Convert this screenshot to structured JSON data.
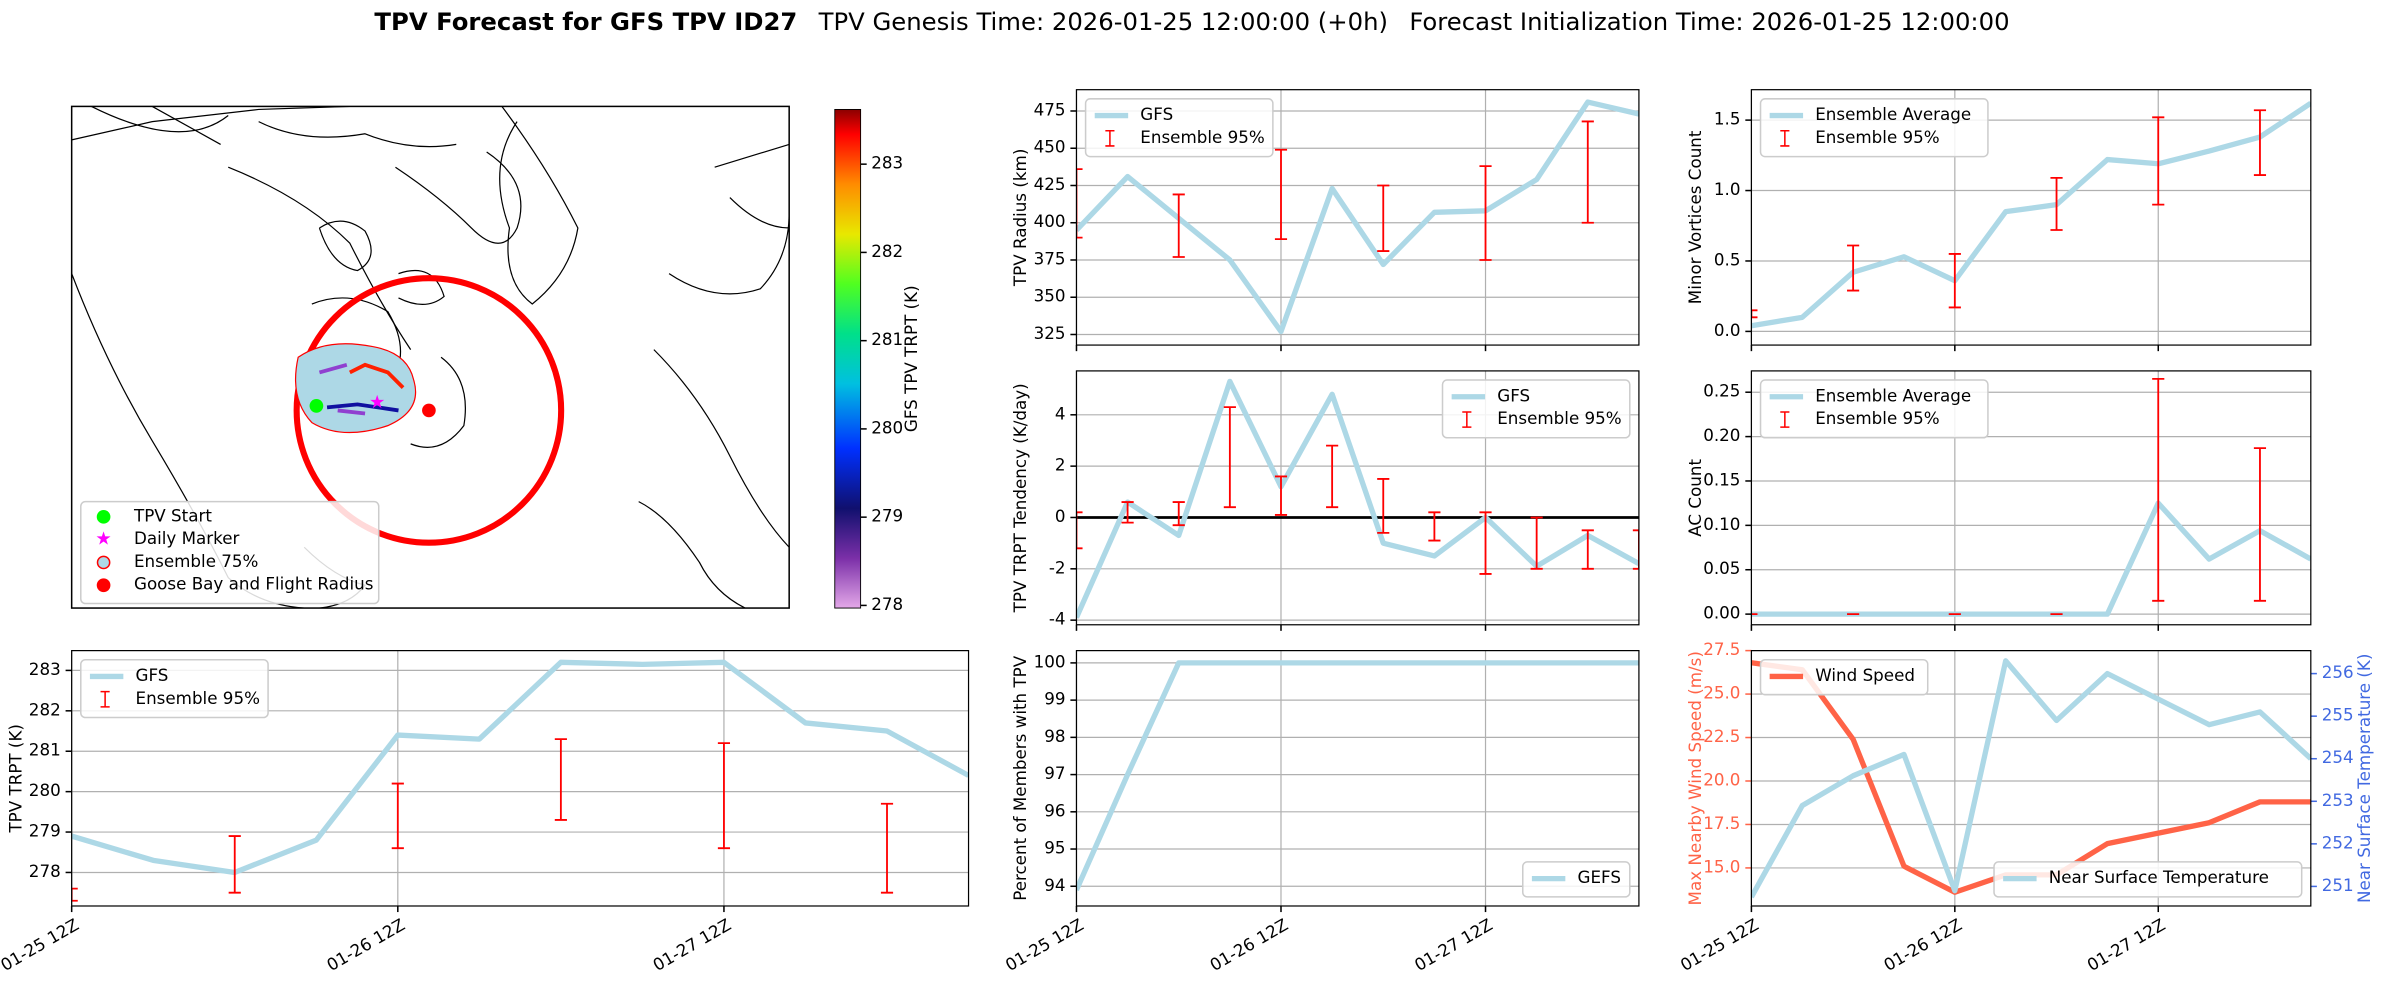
{
  "title": {
    "bold": "TPV Forecast for GFS TPV ID27",
    "genesis": "TPV Genesis Time: 2026-01-25 12:00:00 (+0h)",
    "init": "Forecast Initialization Time: 2026-01-25 12:00:00"
  },
  "chart_data": [
    {
      "type": "map",
      "legend": [
        "TPV Start",
        "Daily Marker",
        "Ensemble 75%",
        "Goose Bay and Flight Radius"
      ],
      "legend_colors": [
        "#00ff00",
        "#ff00ff",
        "#add8e6",
        "#ff0000"
      ],
      "colorbar": {
        "label": "GFS TPV TRPT (K)",
        "lim": [
          277.97,
          283.62
        ],
        "ticks": [
          278,
          279,
          280,
          281,
          282,
          283
        ]
      }
    },
    {
      "type": "line",
      "ylabel": "TPV Radius (km)",
      "legend": "upper left",
      "grid": true,
      "categories": [
        null,
        null,
        null,
        null,
        null,
        null,
        null,
        null,
        null,
        null,
        null,
        null
      ],
      "ylim": [
        317.9,
        489.3
      ],
      "yticks": [
        325,
        350,
        375,
        400,
        425,
        450,
        475
      ],
      "series": [
        {
          "name": "GFS",
          "color": "#add8e6",
          "values": [
            395,
            431,
            403,
            375,
            327,
            423,
            372,
            407,
            408,
            429,
            481,
            473
          ]
        },
        {
          "name": "Ensemble 95%",
          "color": "#ff0000",
          "type": "errorbar",
          "low": [
            390,
            null,
            377,
            null,
            389,
            null,
            381,
            null,
            375,
            null,
            400,
            null
          ],
          "high": [
            436,
            null,
            419,
            null,
            449,
            null,
            425,
            null,
            438,
            null,
            468,
            null
          ]
        }
      ]
    },
    {
      "type": "line",
      "ylabel": "TPV TRPT Tendency (K/day)",
      "legend": "upper right",
      "grid": true,
      "hline": 0,
      "categories": [
        null,
        null,
        null,
        null,
        null,
        null,
        null,
        null,
        null,
        null,
        null,
        null
      ],
      "ylim": [
        -4.18,
        5.71
      ],
      "yticks": [
        -4,
        -2,
        0,
        2,
        4
      ],
      "series": [
        {
          "name": "GFS",
          "color": "#add8e6",
          "values": [
            -3.9,
            0.6,
            -0.7,
            5.3,
            1.2,
            4.8,
            -1.0,
            -1.5,
            0.0,
            -1.9,
            -0.7,
            -1.8
          ]
        },
        {
          "name": "Ensemble 95%",
          "color": "#ff0000",
          "type": "errorbar",
          "low": [
            -1.2,
            -0.2,
            -0.3,
            0.4,
            0.1,
            0.4,
            -0.6,
            -0.9,
            -2.2,
            -2.0,
            -2.0,
            -2.0
          ],
          "high": [
            0.2,
            0.6,
            0.6,
            4.3,
            1.6,
            2.8,
            1.5,
            0.2,
            0.2,
            0.0,
            -0.5,
            -0.5
          ]
        }
      ]
    },
    {
      "type": "line",
      "ylabel": "Percent of Members with TPV",
      "legend": "lower right",
      "grid": true,
      "categories": [
        "01-25 12Z",
        null,
        null,
        null,
        "01-26 12Z",
        null,
        null,
        null,
        "01-27 12Z",
        null,
        null,
        null
      ],
      "ylim": [
        93.47,
        100.33
      ],
      "yticks": [
        94,
        95,
        96,
        97,
        98,
        99,
        100
      ],
      "series": [
        {
          "name": "GEFS",
          "color": "#add8e6",
          "values": [
            93.9,
            97,
            100,
            100,
            100,
            100,
            100,
            100,
            100,
            100,
            100,
            100
          ]
        }
      ]
    },
    {
      "type": "line",
      "ylabel": "Minor Vortices Count",
      "legend": "upper left",
      "grid": true,
      "categories": [
        null,
        null,
        null,
        null,
        null,
        null,
        null,
        null,
        null,
        null,
        null,
        null
      ],
      "ylim": [
        -0.097,
        1.716
      ],
      "yticks": [
        {
          "value": 0,
          "label": "0.0"
        },
        0.5,
        {
          "value": 1,
          "label": "1.0"
        },
        1.5
      ],
      "series": [
        {
          "name": "Ensemble Average",
          "color": "#add8e6",
          "values": [
            0.04,
            0.1,
            0.42,
            0.53,
            0.36,
            0.85,
            0.9,
            1.22,
            1.19,
            1.28,
            1.38,
            1.62
          ]
        },
        {
          "name": "Ensemble 95%",
          "color": "#ff0000",
          "type": "errorbar",
          "low": [
            0.1,
            null,
            0.29,
            null,
            0.17,
            null,
            0.72,
            null,
            0.9,
            null,
            1.11,
            null
          ],
          "high": [
            0.15,
            null,
            0.61,
            null,
            0.55,
            null,
            1.09,
            null,
            1.52,
            null,
            1.57,
            null
          ]
        }
      ]
    },
    {
      "type": "line",
      "ylabel": "AC Count",
      "legend": "upper left",
      "grid": true,
      "categories": [
        null,
        null,
        null,
        null,
        null,
        null,
        null,
        null,
        null,
        null,
        null,
        null
      ],
      "ylim": [
        -0.012,
        0.274
      ],
      "yticks": [
        {
          "value": 0,
          "label": "0.00"
        },
        0.05,
        {
          "value": 0.1,
          "label": "0.10"
        },
        0.15,
        {
          "value": 0.2,
          "label": "0.20"
        },
        0.25
      ],
      "series": [
        {
          "name": "Ensemble Average",
          "color": "#add8e6",
          "values": [
            0,
            0,
            0,
            0,
            0,
            0,
            0,
            0,
            0.125,
            0.062,
            0.094,
            0.062
          ]
        },
        {
          "name": "Ensemble 95%",
          "color": "#ff0000",
          "type": "errorbar",
          "low": [
            0,
            null,
            0,
            null,
            0,
            null,
            0,
            null,
            0.015,
            null,
            0.015,
            null
          ],
          "high": [
            0,
            null,
            0,
            null,
            0,
            null,
            0,
            null,
            0.265,
            null,
            0.187,
            null
          ]
        }
      ]
    },
    {
      "type": "line",
      "ylabel": "TPV TRPT (K)",
      "legend": "upper left",
      "grid": true,
      "categories": [
        "01-25 12Z",
        null,
        null,
        null,
        "01-26 12Z",
        null,
        null,
        null,
        "01-27 12Z",
        null,
        null,
        null
      ],
      "ylim": [
        277.17,
        283.49
      ],
      "yticks": [
        278,
        279,
        280,
        281,
        282,
        283
      ],
      "series": [
        {
          "name": "GFS",
          "color": "#add8e6",
          "values": [
            278.9,
            278.3,
            278.0,
            278.8,
            281.4,
            281.3,
            283.2,
            283.15,
            283.2,
            281.7,
            281.5,
            280.4
          ]
        },
        {
          "name": "Ensemble 95%",
          "color": "#ff0000",
          "type": "errorbar",
          "low": [
            277.3,
            null,
            277.5,
            null,
            278.6,
            null,
            279.3,
            null,
            278.6,
            null,
            277.5,
            null
          ],
          "high": [
            277.6,
            null,
            278.9,
            null,
            280.2,
            null,
            281.3,
            null,
            281.2,
            null,
            279.7,
            null
          ]
        }
      ]
    },
    {
      "type": "line",
      "ylabel": "Max Nearby Wind Speed (m/s)",
      "ylabel_color": "#ff6347",
      "y2label": "Near Surface Temperature (K)",
      "y2label_color": "#4169e1",
      "legend": "upper left",
      "legend2": "lower right",
      "grid": true,
      "categories": [
        "01-25 12Z",
        null,
        null,
        null,
        "01-26 12Z",
        null,
        null,
        null,
        "01-27 12Z",
        null,
        null,
        null
      ],
      "ylim": [
        12.81,
        27.5
      ],
      "yticks": [
        {
          "value": 15,
          "label": "15.0"
        },
        17.5,
        {
          "value": 20,
          "label": "20.0"
        },
        22.5,
        {
          "value": 25,
          "label": "25.0"
        },
        27.5
      ],
      "y2lim": [
        250.54,
        256.54
      ],
      "y2ticks": [
        251,
        252,
        253,
        254,
        255,
        256
      ],
      "series": [
        {
          "name": "Wind Speed",
          "color": "#ff6347",
          "values": [
            26.8,
            26.4,
            22.4,
            15.1,
            13.6,
            14.6,
            14.6,
            16.4,
            17.0,
            17.6,
            18.8,
            18.8
          ]
        },
        {
          "name": "Near Surface Temperature",
          "color": "#add8e6",
          "axis": "y2",
          "values": [
            250.75,
            252.9,
            253.6,
            254.1,
            250.9,
            256.3,
            254.9,
            256.0,
            255.4,
            254.8,
            255.1,
            254.0
          ]
        }
      ]
    }
  ]
}
